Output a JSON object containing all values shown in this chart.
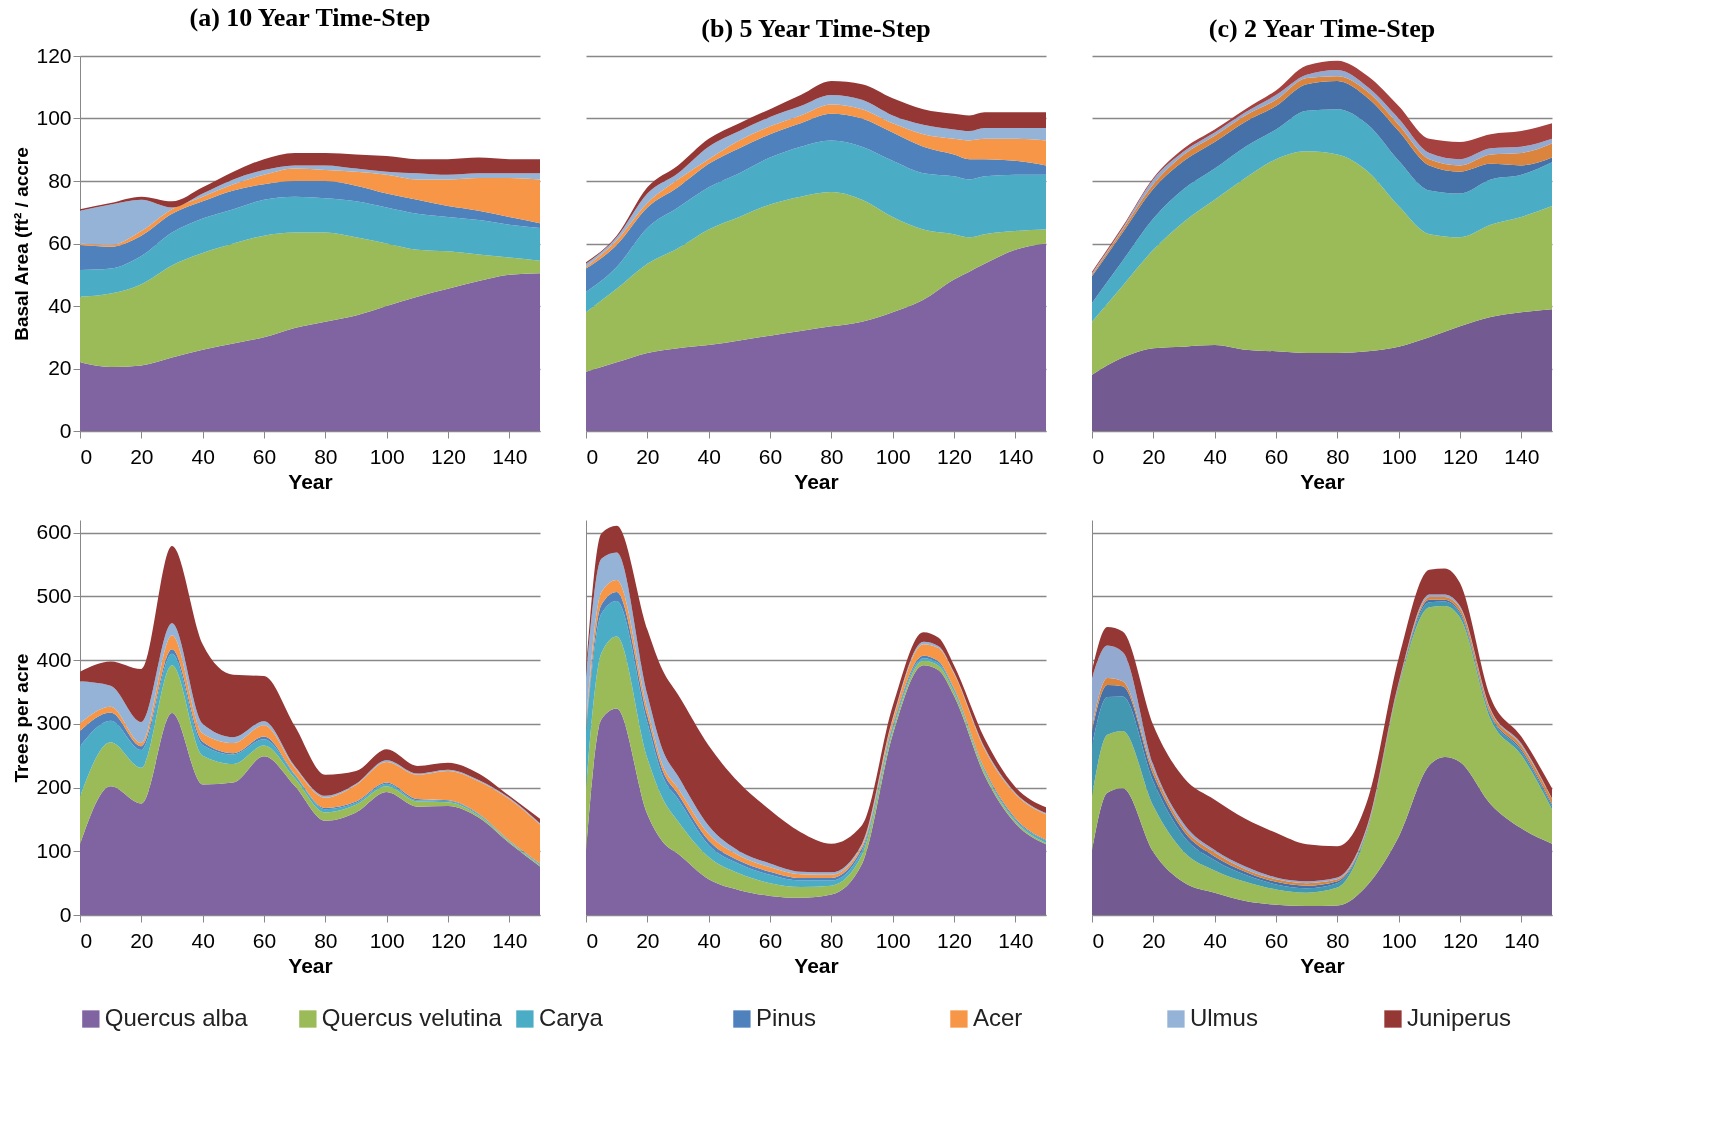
{
  "chart_data": [
    {
      "type": "area",
      "title": "(a) 10 Year Time-Step",
      "xlabel": "Year",
      "ylabel": "Basal Area (ft² / accre",
      "stacked": true,
      "grid": "y",
      "legend": "bottom",
      "x": [
        0,
        10,
        20,
        30,
        40,
        50,
        60,
        70,
        80,
        90,
        100,
        110,
        120,
        130,
        140,
        150
      ],
      "xlim": [
        0,
        150
      ],
      "xticks": [
        0,
        20,
        40,
        60,
        80,
        100,
        120,
        140
      ],
      "ylim": [
        0,
        120
      ],
      "yticks": [
        0,
        20,
        40,
        60,
        80,
        100,
        120
      ],
      "series": [
        {
          "name": "Quercus alba",
          "color": "#8064a2",
          "values": [
            22,
            20.5,
            21,
            23.5,
            26,
            28,
            30,
            33,
            35,
            37,
            40,
            43,
            45.5,
            48,
            50,
            50.5
          ]
        },
        {
          "name": "Quercus velutina",
          "color": "#9bbb59",
          "values": [
            21,
            23.5,
            26,
            29.5,
            31,
            32,
            32.5,
            30.5,
            28.5,
            25,
            20,
            15,
            12,
            8.5,
            5.5,
            4
          ]
        },
        {
          "name": "Carya",
          "color": "#4bacc6",
          "values": [
            8.5,
            8,
            9,
            10.5,
            11,
            11,
            11.5,
            11.5,
            11,
            11.5,
            11.5,
            11.5,
            11,
            11,
            10.5,
            10.5
          ]
        },
        {
          "name": "Pinus",
          "color": "#4f81bd",
          "values": [
            8,
            7,
            6.5,
            6,
            5.5,
            6,
            5,
            5,
            5.5,
            5,
            4.5,
            4.5,
            3.5,
            3,
            2.5,
            1.5
          ]
        },
        {
          "name": "Acer",
          "color": "#f79646",
          "values": [
            0.5,
            0.5,
            1.5,
            1.5,
            1.5,
            2,
            3,
            4,
            3.5,
            4.5,
            6,
            6.5,
            8.5,
            10.5,
            12.5,
            14
          ]
        },
        {
          "name": "Ulmus",
          "color": "#95b3d7",
          "values": [
            10.5,
            13,
            10,
            0.5,
            1,
            1.5,
            1.5,
            1,
            1.5,
            1,
            1,
            2,
            1.5,
            1.5,
            1.5,
            2
          ]
        },
        {
          "name": "Juniperus",
          "color": "#953735",
          "values": [
            0.5,
            0.5,
            1,
            2,
            2,
            2.5,
            3.5,
            4,
            4,
            4.5,
            5,
            4.5,
            5,
            5,
            4.5,
            4.5
          ]
        }
      ]
    },
    {
      "type": "area",
      "title": "(b) 5 Year Time-Step",
      "xlabel": "Year",
      "stacked": true,
      "grid": "y",
      "tick_labels": "x",
      "x": [
        0,
        10,
        20,
        30,
        40,
        50,
        60,
        70,
        80,
        90,
        100,
        110,
        120,
        125,
        130,
        140,
        150
      ],
      "xlim": [
        0,
        150
      ],
      "xticks": [
        0,
        20,
        40,
        60,
        80,
        100,
        120,
        140
      ],
      "ylim": [
        0,
        120
      ],
      "yticks": [
        0,
        20,
        40,
        60,
        80,
        100,
        120
      ],
      "series": [
        {
          "color": "#8064a2",
          "values": [
            19,
            22,
            25,
            26.5,
            27.5,
            29,
            30.5,
            32,
            33.5,
            35,
            38,
            42,
            48.5,
            51,
            53.5,
            58,
            60
          ]
        },
        {
          "color": "#9bbb59",
          "values": [
            19,
            23.5,
            28.5,
            32,
            37,
            39.5,
            42,
            43,
            43,
            39,
            30.5,
            22.5,
            14.5,
            11,
            9.5,
            6,
            4.5
          ]
        },
        {
          "color": "#4bacc6",
          "values": [
            6.5,
            7,
            11.5,
            13,
            13.5,
            14,
            15,
            16,
            16.5,
            17,
            18,
            18,
            18.5,
            18.5,
            18.5,
            18,
            17.5
          ]
        },
        {
          "color": "#4f81bd",
          "values": [
            7.5,
            7,
            6.5,
            6.5,
            7.5,
            8,
            7.5,
            7.5,
            8.5,
            9,
            9,
            8.5,
            7,
            6.5,
            5.5,
            4.5,
            3
          ]
        },
        {
          "color": "#f79646",
          "values": [
            0.5,
            1.5,
            1.5,
            2.5,
            1.5,
            2.5,
            2.5,
            2.5,
            3,
            3,
            3,
            4,
            5,
            6,
            6.5,
            7,
            8
          ]
        },
        {
          "color": "#95b3d7",
          "values": [
            1,
            1,
            3,
            2,
            4,
            3,
            3,
            3,
            3,
            3,
            2.5,
            3,
            3,
            3,
            3.5,
            3.5,
            4
          ]
        },
        {
          "color": "#953735",
          "values": [
            0.5,
            0.5,
            2,
            2.5,
            2.5,
            2.5,
            2.5,
            3.5,
            4.5,
            5,
            5.5,
            5,
            5,
            5,
            5,
            5,
            5
          ]
        }
      ]
    },
    {
      "type": "area",
      "title": "(c) 2 Year Time-Step",
      "xlabel": "Year",
      "stacked": true,
      "grid": "y",
      "tick_labels": "x",
      "x": [
        0,
        10,
        20,
        30,
        40,
        50,
        60,
        70,
        80,
        90,
        100,
        110,
        120,
        130,
        140,
        150
      ],
      "xlim": [
        0,
        150
      ],
      "xticks": [
        0,
        20,
        40,
        60,
        80,
        100,
        120,
        140
      ],
      "ylim": [
        0,
        120
      ],
      "yticks": [
        0,
        20,
        40,
        60,
        80,
        100,
        120
      ],
      "series": [
        {
          "color": "#735a90",
          "values": [
            18,
            23.5,
            26.5,
            27,
            27.5,
            26,
            25.5,
            25,
            25,
            25.5,
            27,
            30,
            33.5,
            36.5,
            38,
            39
          ]
        },
        {
          "color": "#9bbb59",
          "values": [
            17,
            23,
            31.5,
            40,
            46.5,
            55,
            61.5,
            64.5,
            63.5,
            57.5,
            45,
            33,
            28.5,
            29.5,
            30.5,
            33
          ]
        },
        {
          "color": "#4bacc6",
          "values": [
            6,
            8,
            10,
            10.5,
            10,
            10,
            9.5,
            13,
            14.5,
            15,
            14.5,
            14,
            14,
            14.5,
            13.5,
            14
          ]
        },
        {
          "color": "#4571a8",
          "values": [
            8.5,
            9,
            9.5,
            9,
            8.5,
            8,
            7.5,
            8.5,
            9,
            8.5,
            9.5,
            8,
            7,
            5,
            3,
            1.5
          ]
        },
        {
          "color": "#db843d",
          "values": [
            0.5,
            1,
            1.5,
            2,
            2,
            2,
            2,
            2,
            1.5,
            2,
            2,
            2,
            2,
            3,
            4,
            4.5
          ]
        },
        {
          "color": "#93a9cf",
          "values": [
            0.5,
            0.5,
            1.5,
            1,
            1,
            1,
            1.5,
            1,
            2,
            1.5,
            2,
            2,
            2,
            2,
            2,
            1.5
          ]
        },
        {
          "color": "#a5423f",
          "values": [
            0.5,
            0.5,
            0.5,
            1,
            1,
            1,
            1.5,
            3,
            3,
            3.5,
            4,
            4.5,
            5.5,
            4.5,
            5,
            5
          ]
        }
      ]
    },
    {
      "type": "area",
      "xlabel": "Year",
      "ylabel": "Trees per acre",
      "stacked": true,
      "grid": "y",
      "x": [
        0,
        10,
        20,
        30,
        40,
        50,
        60,
        70,
        80,
        90,
        100,
        110,
        120,
        130,
        140,
        150
      ],
      "xlim": [
        0,
        150
      ],
      "xticks": [
        0,
        20,
        40,
        60,
        80,
        100,
        120,
        140
      ],
      "ylim": [
        0,
        620
      ],
      "yticks": [
        0,
        100,
        200,
        300,
        400,
        500,
        600
      ],
      "series": [
        {
          "color": "#8064a2",
          "values": [
            111,
            202,
            175,
            317,
            205,
            208,
            249,
            203,
            148,
            161,
            193,
            170,
            171,
            153,
            113,
            76
          ]
        },
        {
          "color": "#9bbb59",
          "values": [
            75,
            69,
            56,
            75,
            45,
            29,
            17,
            12,
            13,
            12,
            9,
            8,
            6,
            3,
            2,
            2
          ]
        },
        {
          "color": "#4bacc6",
          "values": [
            79,
            34,
            28,
            18,
            17,
            15,
            10,
            5,
            5,
            3,
            4,
            2,
            2,
            2,
            1,
            2
          ]
        },
        {
          "color": "#4f81bd",
          "values": [
            24,
            13,
            6,
            7,
            5,
            2,
            4,
            1,
            2,
            2,
            2,
            2,
            1,
            1,
            1,
            1
          ]
        },
        {
          "color": "#f79646",
          "values": [
            12,
            9,
            5,
            22,
            13,
            16,
            18,
            10,
            16,
            26,
            32,
            38,
            46,
            51,
            65,
            61
          ]
        },
        {
          "color": "#95b3d7",
          "values": [
            66,
            33,
            33,
            19,
            15,
            9,
            6,
            3,
            3,
            2,
            3,
            2,
            2,
            2,
            2,
            2
          ]
        },
        {
          "color": "#953735",
          "values": [
            15,
            38,
            83,
            121,
            125,
            98,
            71,
            63,
            33,
            20,
            17,
            12,
            11,
            10,
            3,
            7
          ]
        }
      ]
    },
    {
      "type": "area",
      "xlabel": "Year",
      "stacked": true,
      "grid": "y",
      "tick_labels": "x",
      "x": [
        0,
        5,
        10,
        20,
        25,
        30,
        40,
        50,
        60,
        70,
        80,
        90,
        100,
        110,
        115,
        120,
        130,
        140,
        150
      ],
      "xlim": [
        0,
        150
      ],
      "xticks": [
        0,
        20,
        40,
        60,
        80,
        100,
        120,
        140
      ],
      "ylim": [
        0,
        620
      ],
      "yticks": [
        0,
        100,
        200,
        300,
        400,
        500,
        600
      ],
      "series": [
        {
          "color": "#8064a2",
          "values": [
            101,
            307,
            324,
            158,
            115,
            96,
            56,
            39,
            30,
            27,
            32,
            80,
            283,
            392,
            384,
            344,
            219,
            144,
            111
          ]
        },
        {
          "color": "#9bbb59",
          "values": [
            99,
            104,
            113,
            88,
            68,
            51,
            35,
            26,
            20,
            17,
            14,
            14,
            6,
            7,
            7,
            6,
            5,
            3,
            2
          ]
        },
        {
          "color": "#4bacc6",
          "values": [
            88,
            62,
            56,
            56,
            35,
            35,
            19,
            15,
            13,
            10,
            8,
            7,
            6,
            4,
            4,
            4,
            3,
            3,
            4
          ]
        },
        {
          "color": "#4f81bd",
          "values": [
            5,
            14,
            14,
            11,
            9,
            8,
            7,
            5,
            5,
            4,
            4,
            4,
            3,
            4,
            3,
            2,
            2,
            2,
            1
          ]
        },
        {
          "color": "#f79646",
          "values": [
            8,
            20,
            19,
            11,
            8,
            9,
            10,
            8,
            7,
            6,
            5,
            4,
            8,
            18,
            21,
            23,
            31,
            38,
            40
          ]
        },
        {
          "color": "#95b3d7",
          "values": [
            72,
            52,
            43,
            22,
            24,
            19,
            13,
            7,
            6,
            4,
            4,
            3,
            3,
            4,
            3,
            2,
            3,
            2,
            2
          ]
        },
        {
          "color": "#953735",
          "values": [
            11,
            40,
            42,
            102,
            125,
            128,
            126,
            107,
            84,
            62,
            45,
            29,
            19,
            15,
            13,
            11,
            14,
            9,
            9
          ]
        }
      ]
    },
    {
      "type": "area",
      "xlabel": "Year",
      "stacked": true,
      "grid": "y",
      "tick_labels": "x",
      "x": [
        0,
        5,
        10,
        20,
        30,
        40,
        50,
        60,
        70,
        80,
        90,
        100,
        110,
        115,
        120,
        130,
        140,
        150
      ],
      "xlim": [
        0,
        150
      ],
      "xticks": [
        0,
        20,
        40,
        60,
        80,
        100,
        120,
        140
      ],
      "ylim": [
        0,
        620
      ],
      "yticks": [
        0,
        100,
        200,
        300,
        400,
        500,
        600
      ],
      "series": [
        {
          "color": "#735a90",
          "values": [
            101,
            192,
            199,
            99,
            51,
            35,
            22,
            16,
            14,
            15,
            48,
            123,
            235,
            248,
            240,
            174,
            136,
            112
          ]
        },
        {
          "color": "#9bbb59",
          "values": [
            86,
            91,
            90,
            72,
            48,
            35,
            30,
            24,
            21,
            28,
            88,
            235,
            248,
            237,
            227,
            133,
            115,
            54
          ]
        },
        {
          "color": "#4298b0",
          "values": [
            78,
            59,
            54,
            38,
            24,
            16,
            11,
            8,
            7,
            7,
            3,
            3,
            8,
            7,
            6,
            6,
            6,
            5
          ]
        },
        {
          "color": "#4571a8",
          "values": [
            24,
            19,
            16,
            11,
            8,
            6,
            5,
            4,
            4,
            3,
            1,
            1,
            4,
            3,
            3,
            2,
            3,
            3
          ]
        },
        {
          "color": "#db843d",
          "values": [
            6,
            11,
            8,
            8,
            6,
            6,
            4,
            4,
            4,
            3,
            2,
            2,
            4,
            4,
            6,
            6,
            6,
            8
          ]
        },
        {
          "color": "#93a9cf",
          "values": [
            77,
            51,
            46,
            8,
            6,
            4,
            4,
            3,
            3,
            3,
            2,
            1,
            4,
            4,
            3,
            2,
            3,
            1
          ]
        },
        {
          "color": "#953735",
          "values": [
            11,
            29,
            32,
            62,
            72,
            79,
            75,
            70,
            58,
            49,
            39,
            38,
            39,
            41,
            36,
            18,
            11,
            16
          ]
        }
      ]
    }
  ]
}
